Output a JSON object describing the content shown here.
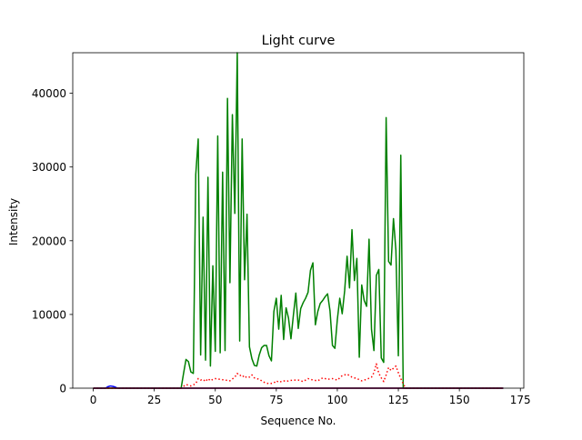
{
  "chart_data": {
    "type": "line",
    "title": "Light curve",
    "xlabel": "Sequence No.",
    "ylabel": "Intensity",
    "xlim": [
      -8.4,
      176.4
    ],
    "ylim": [
      0,
      45500
    ],
    "xticks": [
      0,
      25,
      50,
      75,
      100,
      125,
      150,
      175
    ],
    "yticks": [
      0,
      10000,
      20000,
      30000,
      40000
    ],
    "grid": false,
    "legend": "none",
    "series": [
      {
        "color": "#008000",
        "style": "solid",
        "x": [
          0,
          36,
          37,
          38,
          39,
          40,
          41,
          42,
          43,
          44,
          45,
          46,
          47,
          48,
          49,
          50,
          51,
          52,
          53,
          54,
          55,
          56,
          57,
          58,
          59,
          60,
          61,
          62,
          63,
          64,
          65,
          66,
          67,
          68,
          69,
          70,
          71,
          72,
          73,
          74,
          75,
          76,
          77,
          78,
          79,
          80,
          81,
          82,
          83,
          84,
          85,
          86,
          87,
          88,
          89,
          90,
          91,
          92,
          93,
          94,
          95,
          96,
          97,
          98,
          99,
          100,
          101,
          102,
          103,
          104,
          105,
          106,
          107,
          108,
          109,
          110,
          111,
          112,
          113,
          114,
          115,
          116,
          117,
          118,
          119,
          120,
          121,
          122,
          123,
          124,
          125,
          126,
          127,
          128,
          168
        ],
        "y": [
          0,
          0,
          2000,
          3900,
          3600,
          2200,
          2000,
          29000,
          33800,
          4500,
          23200,
          3800,
          28600,
          3000,
          16600,
          5000,
          34200,
          4800,
          29300,
          5100,
          39300,
          14300,
          37100,
          23700,
          45500,
          6400,
          33800,
          14700,
          23600,
          5600,
          4000,
          3100,
          3000,
          4500,
          5500,
          5800,
          5800,
          4400,
          3700,
          10400,
          12200,
          8000,
          12600,
          6600,
          10900,
          9500,
          6700,
          9900,
          12900,
          8100,
          10800,
          11600,
          12200,
          13000,
          16000,
          17000,
          8600,
          10400,
          11500,
          11900,
          12400,
          12800,
          10500,
          5800,
          5400,
          9300,
          12200,
          10100,
          13200,
          17900,
          13600,
          21500,
          14600,
          17600,
          4200,
          14000,
          11900,
          11100,
          20200,
          8000,
          5100,
          15300,
          16100,
          4100,
          3500,
          36700,
          17200,
          16700,
          23000,
          18700,
          4400,
          31600,
          0,
          0,
          0
        ]
      },
      {
        "color": "#ff0000",
        "style": "dotted",
        "x": [
          0,
          36,
          38,
          40,
          42,
          43,
          44,
          45,
          46,
          47,
          48,
          49,
          50,
          52,
          54,
          56,
          58,
          59,
          60,
          61,
          62,
          63,
          64,
          65,
          66,
          68,
          70,
          72,
          74,
          75,
          76,
          77,
          78,
          79,
          80,
          82,
          84,
          86,
          88,
          90,
          92,
          94,
          96,
          98,
          100,
          102,
          104,
          106,
          108,
          110,
          112,
          114,
          115,
          116,
          117,
          118,
          119,
          120,
          121,
          122,
          123,
          124,
          125,
          126,
          127,
          128,
          168
        ],
        "y": [
          0,
          0,
          500,
          300,
          600,
          1300,
          1100,
          1200,
          900,
          1300,
          1000,
          1200,
          1300,
          1200,
          1100,
          1000,
          1500,
          2000,
          1700,
          1800,
          1400,
          1600,
          1500,
          1800,
          1400,
          1200,
          800,
          600,
          700,
          1000,
          800,
          900,
          1000,
          900,
          1000,
          1100,
          1100,
          900,
          1300,
          1100,
          1000,
          1400,
          1200,
          1300,
          1100,
          1700,
          1900,
          1500,
          1300,
          1000,
          1200,
          1500,
          2100,
          3300,
          2000,
          1400,
          900,
          1800,
          2800,
          2400,
          2700,
          3000,
          2100,
          1300,
          600,
          0,
          0
        ]
      },
      {
        "color": "#0000ff",
        "style": "solid",
        "x": [
          0,
          5,
          6,
          7,
          8,
          9,
          10,
          168
        ],
        "y": [
          0,
          0,
          200,
          300,
          250,
          150,
          0,
          0
        ]
      },
      {
        "color": "#8b0000",
        "style": "solid",
        "x": [
          0,
          168
        ],
        "y": [
          0,
          0
        ]
      }
    ]
  }
}
